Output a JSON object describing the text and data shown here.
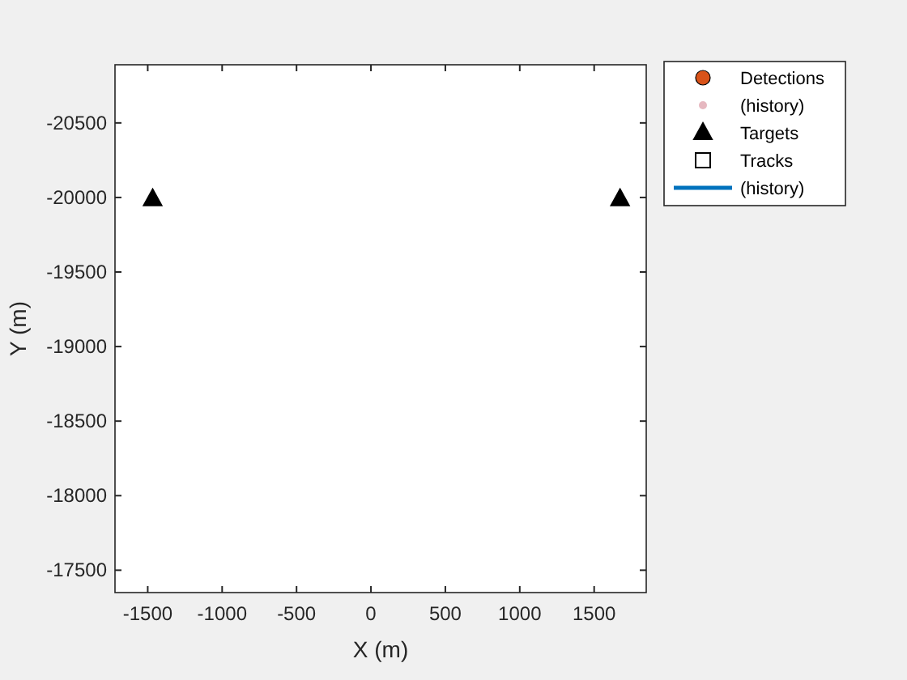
{
  "chart_data": {
    "type": "scatter",
    "xlabel": "X (m)",
    "ylabel": "Y (m)",
    "xlim": [
      -1720,
      1850
    ],
    "ylim": [
      -17350,
      -20890
    ],
    "xticks": [
      -1500,
      -1000,
      -500,
      0,
      500,
      1000,
      1500
    ],
    "yticks": [
      -20500,
      -20000,
      -19500,
      -19000,
      -18500,
      -18000,
      -17500
    ],
    "legend": "top right",
    "grid": false,
    "series": [
      {
        "name": "Detections",
        "marker": "circle",
        "color": "#d95319"
      },
      {
        "name": "(history)",
        "marker": "circle",
        "color": "#e6b8c0"
      },
      {
        "name": "Targets",
        "marker": "triangle",
        "color": "#000000",
        "x": [
          -1467,
          1674
        ],
        "values": [
          -19990,
          -19990
        ]
      },
      {
        "name": "Tracks",
        "marker": "square",
        "color": "#000000"
      },
      {
        "name": "(history)",
        "type": "line",
        "color": "#0072bd"
      }
    ]
  }
}
